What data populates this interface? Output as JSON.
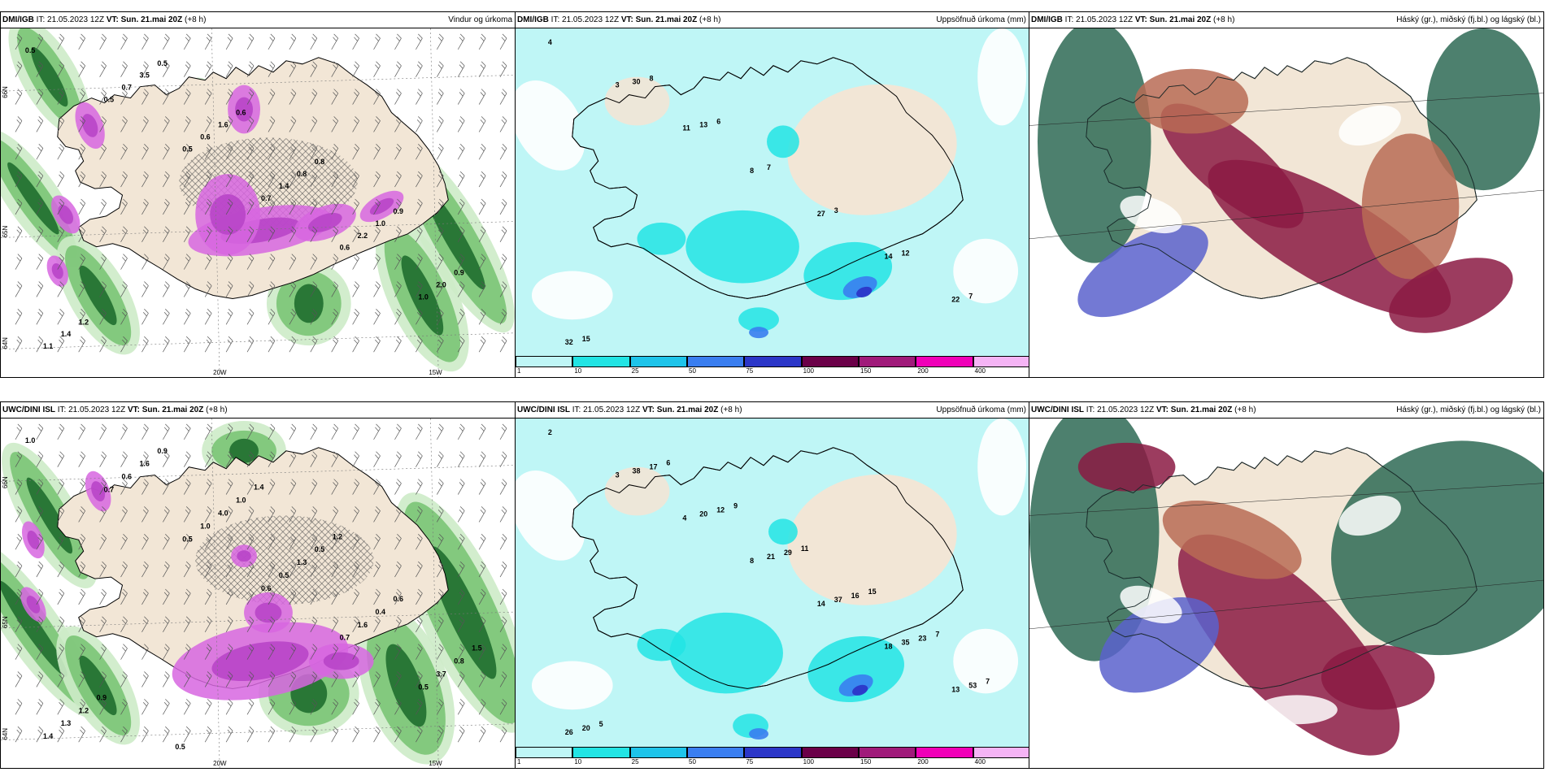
{
  "panels": [
    {
      "id": "p1",
      "model": "DMI/IGB",
      "it": "IT: 21.05.2023 12Z",
      "vt_label": "VT:",
      "vt": "Sun. 21.mai 20Z",
      "lead": "(+8 h)",
      "field": "Vindur og úrkoma",
      "kind": "wind"
    },
    {
      "id": "p2",
      "model": "DMI/IGB",
      "it": "IT: 21.05.2023 12Z",
      "vt_label": "VT:",
      "vt": "Sun. 21.mai 20Z",
      "lead": "(+8 h)",
      "field": "Uppsöfnuð úrkoma (mm)",
      "kind": "accum"
    },
    {
      "id": "p3",
      "model": "DMI/IGB",
      "it": "IT: 21.05.2023 12Z",
      "vt_label": "VT:",
      "vt": "Sun. 21.mai 20Z",
      "lead": "(+8 h)",
      "field": "Háský (gr.), miðský (fj.bl.) og lágský (bl.)",
      "kind": "cloud"
    },
    {
      "id": "p4",
      "model": "UWC/DINI ISL",
      "it": "IT: 21.05.2023 12Z",
      "vt_label": "VT:",
      "vt": "Sun. 21.mai 20Z",
      "lead": "(+8 h)",
      "field": "",
      "kind": "wind"
    },
    {
      "id": "p5",
      "model": "UWC/DINI ISL",
      "it": "IT: 21.05.2023 12Z",
      "vt_label": "VT:",
      "vt": "Sun. 21.mai 20Z",
      "lead": "(+8 h)",
      "field": "Uppsöfnuð úrkoma (mm)",
      "kind": "accum"
    },
    {
      "id": "p6",
      "model": "UWC/DINI ISL",
      "it": "IT: 21.05.2023 12Z",
      "vt_label": "VT:",
      "vt": "Sun. 21.mai 20Z",
      "lead": "(+8 h)",
      "field": "Háský (gr.), miðský (fj.bl.) og lágský (bl.)",
      "kind": "cloud"
    }
  ],
  "axis_labels": {
    "lat_66": "66N",
    "lat_65": "65N",
    "lat_64": "64N",
    "lon_20": "20W",
    "lon_15": "15W"
  },
  "legend": {
    "ticks": [
      "1",
      "10",
      "25",
      "50",
      "75",
      "100",
      "150",
      "200",
      "400"
    ],
    "colors": [
      "#bff6f6",
      "#22e4e4",
      "#1ec4ea",
      "#3a7ef0",
      "#2b36c8",
      "#6b0048",
      "#a01a7a",
      "#f000b8",
      "#f5b4f5"
    ]
  },
  "wind_labels_top": [
    "0.5",
    "0.5",
    "0.5",
    "0.7",
    "0.6",
    "1.0",
    "1.1",
    "0.7",
    "0.6",
    "1.4",
    "2.2",
    "2.0",
    "1.4",
    "3.5",
    "1.6",
    "0.8",
    "1.0",
    "0.9",
    "1.2",
    "0.5",
    "0.6",
    "0.8",
    "0.9"
  ],
  "wind_labels_bottom": [
    "1.0",
    "0.7",
    "0.5",
    "0.6",
    "0.7",
    "0.5",
    "1.4",
    "0.6",
    "1.0",
    "0.5",
    "1.6",
    "3.7",
    "1.3",
    "1.6",
    "4.0",
    "1.3",
    "0.4",
    "0.8",
    "1.2",
    "0.9",
    "1.0",
    "0.5",
    "0.6",
    "1.5",
    "0.9",
    "0.5",
    "1.4",
    "1.2"
  ],
  "accum_labels_top": [
    "4",
    "3",
    "11",
    "8",
    "27",
    "14",
    "22",
    "32",
    "30",
    "13",
    "7",
    "3",
    "12",
    "7",
    "15",
    "8",
    "6"
  ],
  "accum_labels_bottom": [
    "2",
    "3",
    "4",
    "8",
    "14",
    "18",
    "13",
    "26",
    "38",
    "20",
    "21",
    "37",
    "35",
    "53",
    "20",
    "17",
    "12",
    "29",
    "16",
    "23",
    "7",
    "5",
    "6",
    "9",
    "11",
    "15",
    "7"
  ],
  "colors": {
    "land": "#f2e6d6",
    "sea_accum": "#bff6f6",
    "cyan": "#22e4e4",
    "purple": "#b845c8",
    "magenta": "#d766e0",
    "green_light": "#cdebc8",
    "green_mid": "#6fbf6a",
    "green_dark": "#1f6e2f",
    "cloud_high": "#2e6a55",
    "cloud_mid": "#8b1a43",
    "cloud_low": "#5a62cc",
    "cloud_orange": "#b86b55"
  }
}
